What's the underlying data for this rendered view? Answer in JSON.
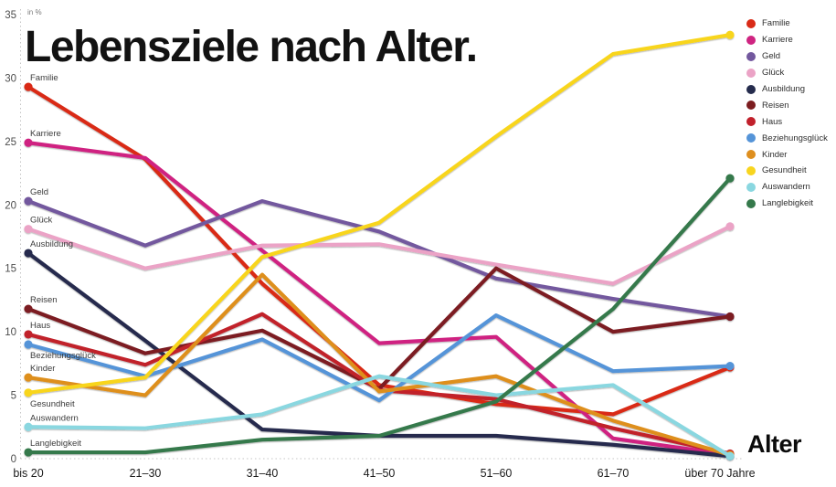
{
  "title": "Lebensziele nach Alter.",
  "chart_data": {
    "type": "line",
    "title": "Lebensziele nach Alter.",
    "unit_label": "in %",
    "xlabel": "Alter",
    "ylim": [
      0,
      35
    ],
    "ytick_step": 5,
    "yticks": [
      0,
      5,
      10,
      15,
      20,
      25,
      30,
      35
    ],
    "grid": "dotted left axis guide and dotted zero baseline only",
    "legend_position": "top-right",
    "series_start_labels": true,
    "categories": [
      "bis 20",
      "21–30",
      "31–40",
      "41–50",
      "51–60",
      "61–70",
      "über 70 Jahre"
    ],
    "series": [
      {
        "name": "Familie",
        "color": "#d92b17",
        "values": [
          29.3,
          23.6,
          13.8,
          5.8,
          4.3,
          3.5,
          7.2
        ]
      },
      {
        "name": "Karriere",
        "color": "#cf2481",
        "values": [
          24.9,
          23.7,
          16.4,
          9.1,
          9.6,
          1.6,
          0.3
        ]
      },
      {
        "name": "Geld",
        "color": "#73589e",
        "values": [
          20.3,
          16.8,
          20.3,
          17.9,
          14.2,
          12.6,
          11.2
        ]
      },
      {
        "name": "Glück",
        "color": "#eba3c6",
        "values": [
          18.1,
          15.0,
          16.8,
          16.9,
          15.3,
          13.8,
          18.3
        ]
      },
      {
        "name": "Ausbildung",
        "color": "#252c4d",
        "values": [
          16.2,
          9.3,
          2.3,
          1.8,
          1.8,
          1.1,
          0.2
        ]
      },
      {
        "name": "Reisen",
        "color": "#7c1d20",
        "values": [
          11.8,
          8.3,
          10.1,
          5.5,
          15.0,
          10.0,
          11.2
        ]
      },
      {
        "name": "Haus",
        "color": "#c1202b",
        "values": [
          9.8,
          7.4,
          11.4,
          5.4,
          4.7,
          2.4,
          0.4
        ]
      },
      {
        "name": "Beziehungsglück",
        "color": "#5594d8",
        "values": [
          9.0,
          6.5,
          9.4,
          4.6,
          11.3,
          6.9,
          7.3
        ]
      },
      {
        "name": "Kinder",
        "color": "#de8f1f",
        "values": [
          6.4,
          5.0,
          14.5,
          5.3,
          6.5,
          3.0,
          0.3
        ]
      },
      {
        "name": "Gesundheit",
        "color": "#f8d51f",
        "values": [
          5.2,
          6.4,
          15.9,
          18.6,
          25.4,
          31.9,
          33.4
        ]
      },
      {
        "name": "Auswandern",
        "color": "#8ad7e0",
        "values": [
          2.5,
          2.4,
          3.5,
          6.5,
          5.0,
          5.8,
          0.2
        ]
      },
      {
        "name": "Langlebigkeit",
        "color": "#35794b",
        "values": [
          0.5,
          0.5,
          1.5,
          1.8,
          4.5,
          11.8,
          22.1
        ]
      }
    ]
  }
}
